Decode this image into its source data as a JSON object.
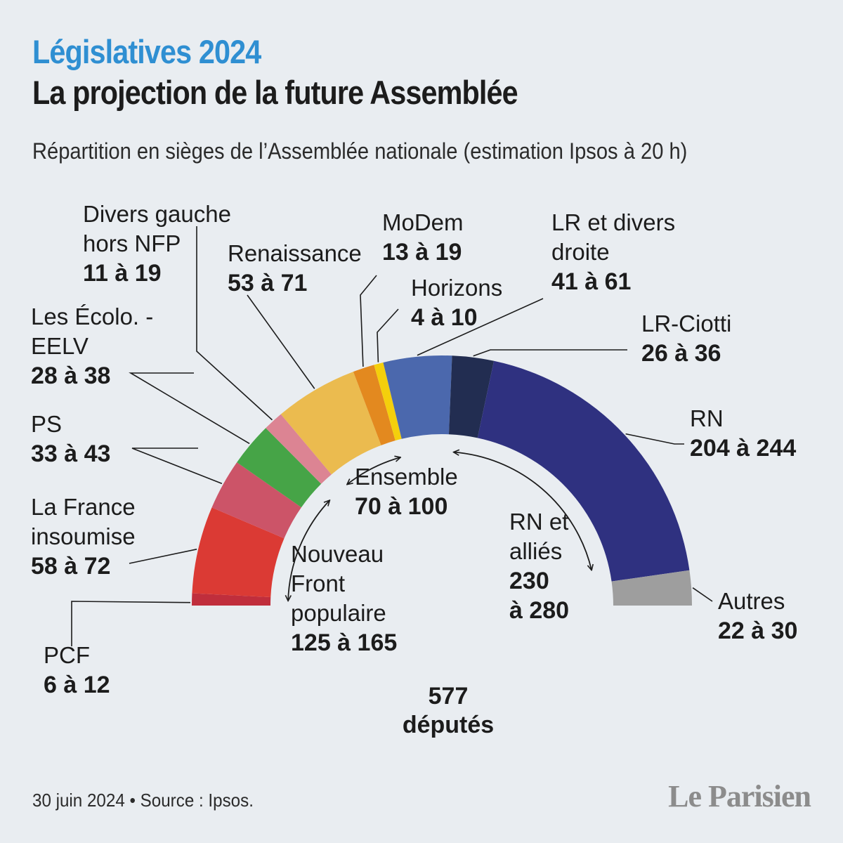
{
  "header": {
    "kicker": "Législatives 2024",
    "title": "La projection de la future Assemblée",
    "subtitle": "Répartition en sièges de l’Assemblée nationale (estimation Ipsos à 20 h)"
  },
  "footer": {
    "source": "30 juin 2024 • Source : Ipsos.",
    "logo": "Le Parisien"
  },
  "chart_data": {
    "type": "hemicycle",
    "title": "Répartition en sièges de l’Assemblée nationale (estimation Ipsos à 20 h)",
    "total_seats": 577,
    "total_label": [
      "577",
      "députés"
    ],
    "parties": [
      {
        "id": "pcf",
        "name": [
          "PCF"
        ],
        "range": "6 à 12",
        "min": 6,
        "max": 12,
        "seats_drawn": 9,
        "color": "#c02e3c"
      },
      {
        "id": "lfi",
        "name": [
          "La France",
          "insoumise"
        ],
        "range": "58 à 72",
        "min": 58,
        "max": 72,
        "seats_drawn": 65,
        "color": "#db3a34"
      },
      {
        "id": "ps",
        "name": [
          "PS"
        ],
        "range": "33 à 43",
        "min": 33,
        "max": 43,
        "seats_drawn": 38,
        "color": "#cc5468"
      },
      {
        "id": "eelv",
        "name": [
          "Les Écolo. -",
          "EELV"
        ],
        "range": "28 à 38",
        "min": 28,
        "max": 38,
        "seats_drawn": 33,
        "color": "#46a447"
      },
      {
        "id": "dvg",
        "name": [
          "Divers gauche",
          "hors NFP"
        ],
        "range": "11 à 19",
        "min": 11,
        "max": 19,
        "seats_drawn": 15,
        "color": "#dc8493"
      },
      {
        "id": "ren",
        "name": [
          "Renaissance"
        ],
        "range": "53 à 71",
        "min": 53,
        "max": 71,
        "seats_drawn": 62,
        "color": "#ebbb4f"
      },
      {
        "id": "modem",
        "name": [
          "MoDem"
        ],
        "range": "13 à 19",
        "min": 13,
        "max": 19,
        "seats_drawn": 16,
        "color": "#e3891f"
      },
      {
        "id": "hor",
        "name": [
          "Horizons"
        ],
        "range": "4 à 10",
        "min": 4,
        "max": 10,
        "seats_drawn": 7,
        "color": "#f4cf0c"
      },
      {
        "id": "lr",
        "name": [
          "LR et divers",
          "droite"
        ],
        "range": "41 à 61",
        "min": 41,
        "max": 61,
        "seats_drawn": 51,
        "color": "#4b68ad"
      },
      {
        "id": "lrc",
        "name": [
          "LR-Ciotti"
        ],
        "range": "26 à 36",
        "min": 26,
        "max": 36,
        "seats_drawn": 31,
        "color": "#222d51"
      },
      {
        "id": "rn",
        "name": [
          "RN"
        ],
        "range": "204 à 244",
        "min": 204,
        "max": 244,
        "seats_drawn": 224,
        "color": "#2f3180"
      },
      {
        "id": "aut",
        "name": [
          "Autres"
        ],
        "range": "22 à 30",
        "min": 22,
        "max": 30,
        "seats_drawn": 26,
        "color": "#9e9e9e"
      }
    ],
    "groups": [
      {
        "id": "nfp",
        "name": [
          "Nouveau",
          "Front",
          "populaire"
        ],
        "range": "125 à 165",
        "min": 125,
        "max": 165,
        "from": "pcf",
        "to": "eelv"
      },
      {
        "id": "ens",
        "name": [
          "Ensemble"
        ],
        "range": "70 à 100",
        "min": 70,
        "max": 100,
        "from": "ren",
        "to": "hor"
      },
      {
        "id": "rnall",
        "name": [
          "RN et",
          "alliés"
        ],
        "range_lines": [
          "230",
          "à 280"
        ],
        "min": 230,
        "max": 280,
        "from": "lrc",
        "to": "rn"
      }
    ]
  }
}
